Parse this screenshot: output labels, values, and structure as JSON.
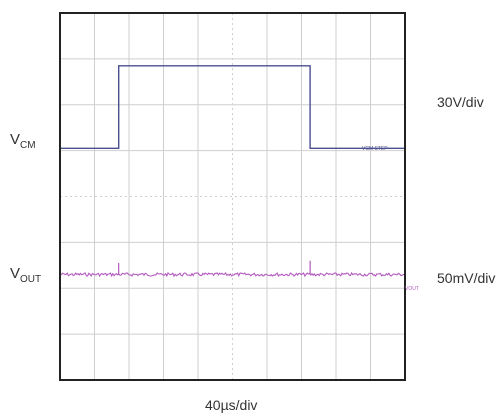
{
  "chart_data": {
    "type": "line",
    "time_scale": "40µs/div",
    "grid": true,
    "divisions": {
      "x": 10,
      "y": 8
    },
    "colors": {
      "vcm": "#4a4f8e",
      "vout": "#b35bbf",
      "grid": "#cfcfcf",
      "frame": "#222222"
    },
    "series": [
      {
        "name": "VCM STEP",
        "channel": {
          "main": "V",
          "sub": "CM"
        },
        "scale": "30V/div",
        "color": "#4a4f8e",
        "x": [
          0,
          1.7,
          1.7,
          7.25,
          7.25,
          8.3,
          8.3,
          10
        ],
        "y": [
          5.05,
          5.05,
          6.85,
          6.85,
          5.05,
          5.05,
          5.05,
          5.05
        ]
      },
      {
        "name": "VOUT",
        "channel": {
          "main": "V",
          "sub": "OUT"
        },
        "scale": "50mV/div",
        "color": "#b35bbf",
        "baseline_div": 2.3,
        "spikes": [
          {
            "x": 1.7,
            "y": 2.55
          },
          {
            "x": 7.25,
            "y": 2.6
          }
        ]
      }
    ]
  },
  "labels": {
    "vcm_main": "V",
    "vcm_sub": "CM",
    "vout_main": "V",
    "vout_sub": "OUT",
    "vcm_scale": "30V/div",
    "vout_scale": "50mV/div",
    "time_scale": "40µs/div",
    "vcm_trace_tag": "VCM STEP",
    "vout_trace_tag": "VOUT"
  }
}
